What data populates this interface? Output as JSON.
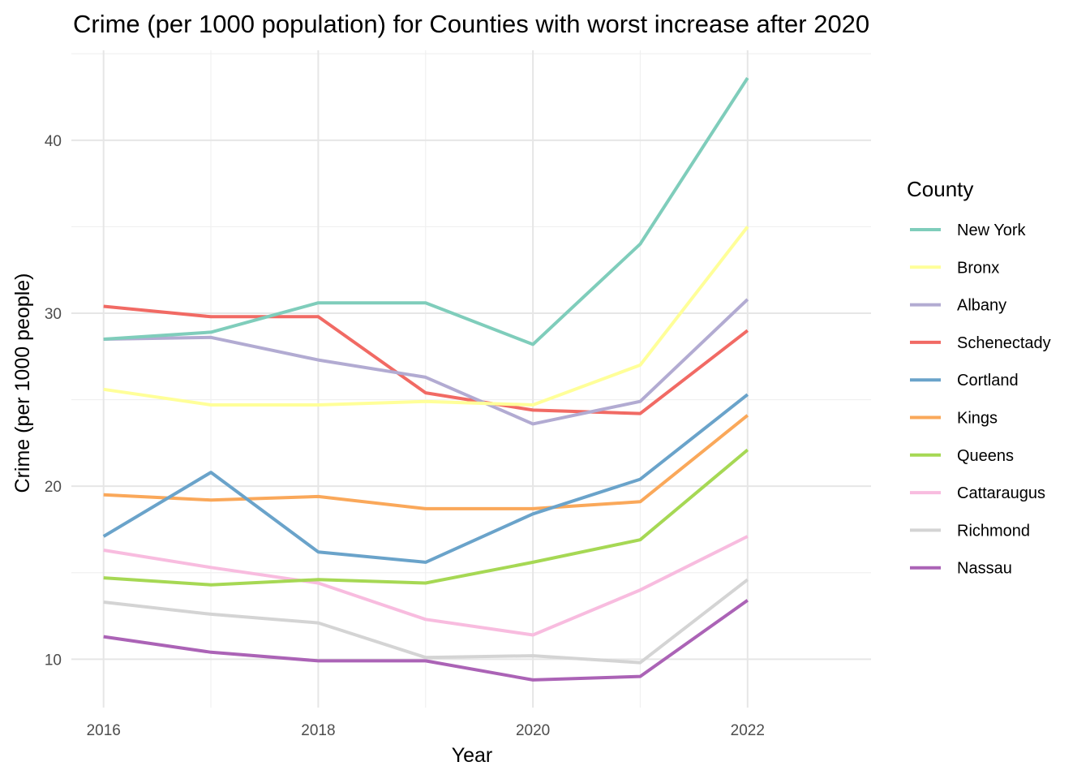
{
  "chart_data": {
    "type": "line",
    "title": "Crime (per 1000 population) for Counties with worst increase after 2020",
    "xlabel": "Year",
    "ylabel": "Crime (per 1000 people)",
    "x": [
      2016,
      2017,
      2018,
      2019,
      2020,
      2021,
      2022
    ],
    "xticks": [
      2016,
      2018,
      2020,
      2022
    ],
    "yticks": [
      10,
      20,
      30,
      40
    ],
    "xlim": [
      2015.7,
      2023.15
    ],
    "ylim": [
      7.2,
      45.2
    ],
    "grid": true,
    "legend_title": "County",
    "legend_position": "right",
    "series": [
      {
        "name": "New York",
        "color": "#7fcdbb",
        "values": [
          28.5,
          28.9,
          30.6,
          30.6,
          28.2,
          34.0,
          43.6
        ]
      },
      {
        "name": "Bronx",
        "color": "#ffff99",
        "values": [
          25.6,
          24.7,
          24.7,
          24.9,
          24.7,
          27.0,
          35.0
        ]
      },
      {
        "name": "Albany",
        "color": "#b2abd2",
        "values": [
          28.5,
          28.6,
          27.3,
          26.3,
          23.6,
          24.9,
          30.8
        ]
      },
      {
        "name": "Schenectady",
        "color": "#f16a64",
        "values": [
          30.4,
          29.8,
          29.8,
          25.4,
          24.4,
          24.2,
          29.0
        ]
      },
      {
        "name": "Cortland",
        "color": "#6aa3ca",
        "values": [
          17.1,
          20.8,
          16.2,
          15.6,
          18.4,
          20.4,
          25.3
        ]
      },
      {
        "name": "Kings",
        "color": "#faa85a",
        "values": [
          19.5,
          19.2,
          19.4,
          18.7,
          18.7,
          19.1,
          24.1
        ]
      },
      {
        "name": "Queens",
        "color": "#a6d854",
        "values": [
          14.7,
          14.3,
          14.6,
          14.4,
          15.6,
          16.9,
          22.1
        ]
      },
      {
        "name": "Cattaraugus",
        "color": "#f8bcdf",
        "values": [
          16.3,
          15.3,
          14.4,
          12.3,
          11.4,
          14.0,
          17.1
        ]
      },
      {
        "name": "Richmond",
        "color": "#d4d4d4",
        "values": [
          13.3,
          12.6,
          12.1,
          10.1,
          10.2,
          9.8,
          14.6
        ]
      },
      {
        "name": "Nassau",
        "color": "#ab63b6",
        "values": [
          11.3,
          10.4,
          9.9,
          9.9,
          8.8,
          9.0,
          13.4
        ]
      }
    ]
  }
}
